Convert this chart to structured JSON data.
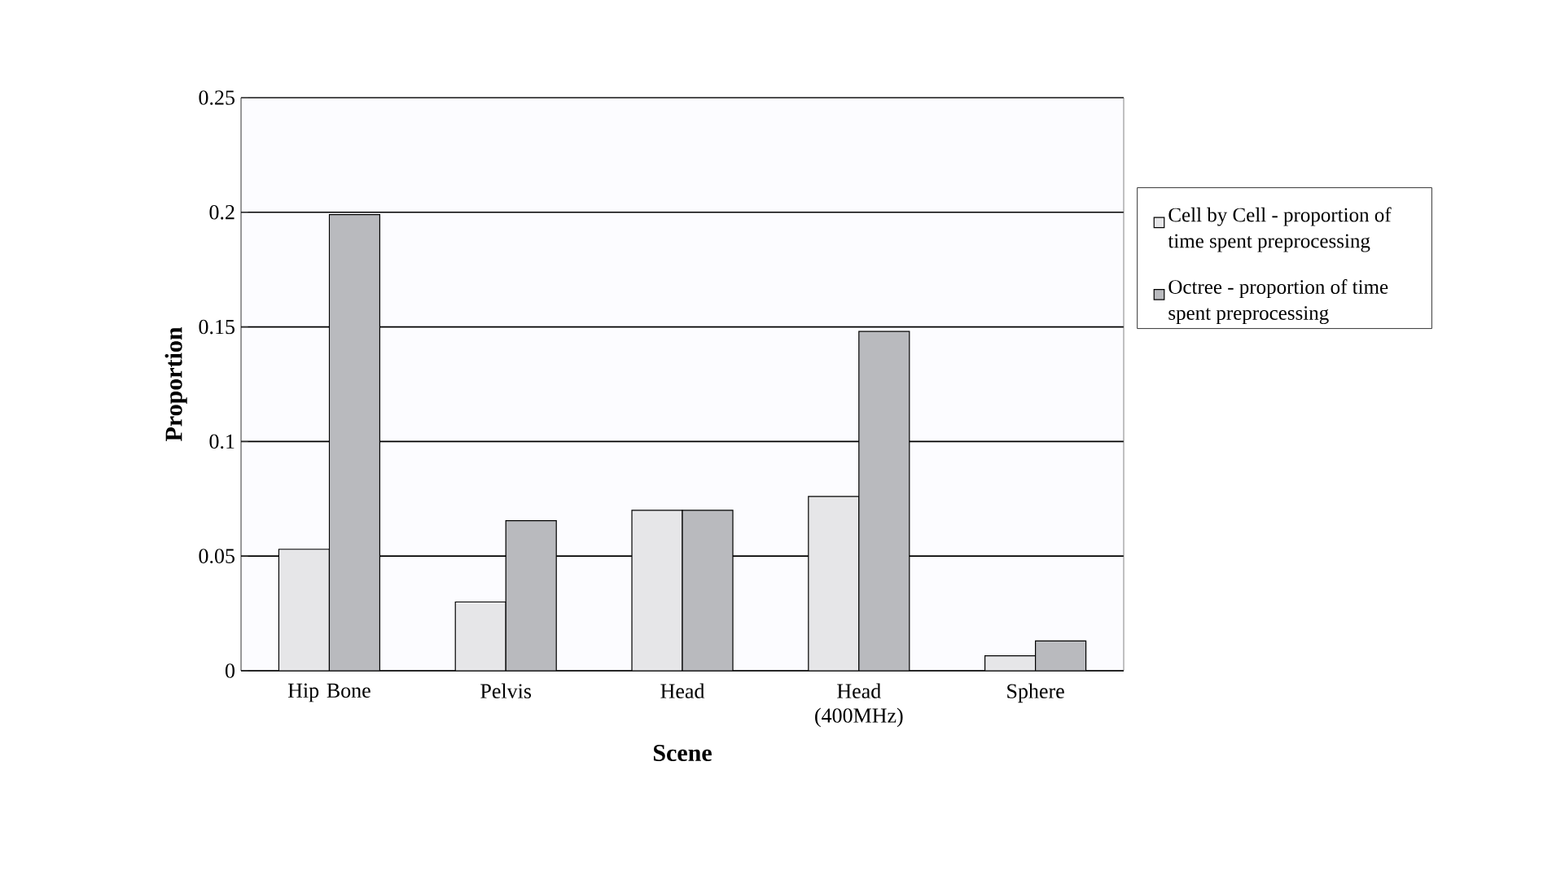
{
  "chart_data": {
    "type": "bar",
    "xlabel": "Scene",
    "ylabel": "Proportion",
    "categories": [
      "Hip Bone",
      "Pelvis",
      "Head",
      "Head (400MHz)",
      "Sphere"
    ],
    "series": [
      {
        "name": "Cell by Cell - proportion of time spent preprocessing",
        "color": "#e6e6e8",
        "values": [
          0.053,
          0.03,
          0.07,
          0.076,
          0.0065
        ]
      },
      {
        "name": "Octree - proportion of time spent preprocessing",
        "color": "#b9babe",
        "values": [
          0.199,
          0.0655,
          0.07,
          0.148,
          0.013
        ]
      }
    ],
    "ylim": [
      0,
      0.25
    ],
    "yticks": [
      0,
      0.05,
      0.1,
      0.15,
      0.2,
      0.25
    ],
    "grid": "y",
    "legend": "right"
  }
}
